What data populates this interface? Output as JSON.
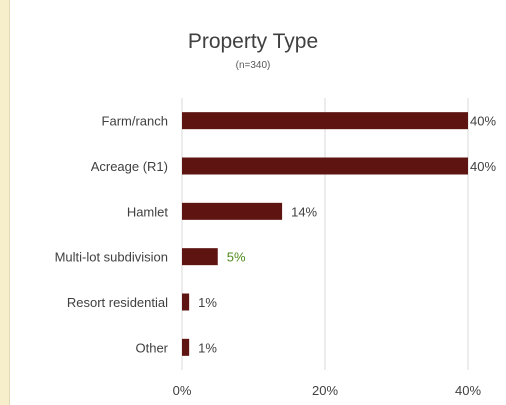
{
  "chart_data": {
    "type": "bar",
    "orientation": "horizontal",
    "title": "Property Type",
    "subtitle": "(n=340)",
    "categories": [
      "Farm/ranch",
      "Acreage (R1)",
      "Hamlet",
      "Multi-lot subdivision",
      "Resort residential",
      "Other"
    ],
    "values": [
      40,
      40,
      14,
      5,
      1,
      1
    ],
    "data_labels": [
      "40%",
      "40%",
      "14%",
      "5%",
      "1%",
      "1%"
    ],
    "x_ticks": [
      "0%",
      "20%",
      "40%"
    ],
    "xlim": [
      0,
      40
    ],
    "grid": true,
    "bar_color": "#5e1411",
    "label_color": "#404040",
    "highlight_label_color": "#4f8b1c"
  }
}
